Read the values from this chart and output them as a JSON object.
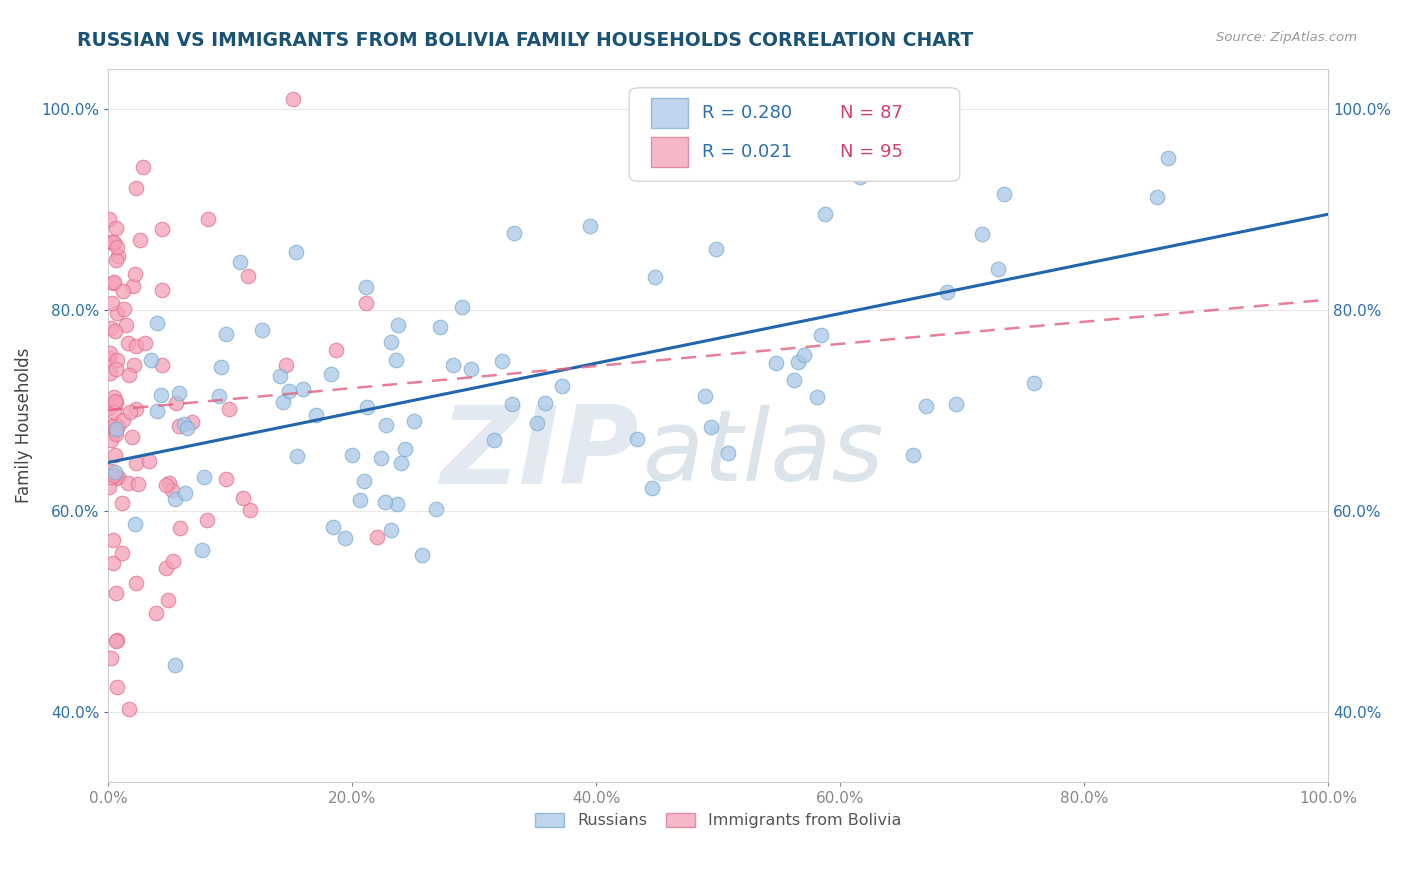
{
  "title": "RUSSIAN VS IMMIGRANTS FROM BOLIVIA FAMILY HOUSEHOLDS CORRELATION CHART",
  "source": "Source: ZipAtlas.com",
  "ylabel": "Family Households",
  "xmin": 0.0,
  "xmax": 1.0,
  "ymin": 0.33,
  "ymax": 1.04,
  "russian_R": 0.28,
  "russian_N": 87,
  "bolivia_R": 0.021,
  "bolivia_N": 95,
  "russian_color": "#a8c8e8",
  "russian_edge_color": "#7aabcc",
  "bolivia_color": "#f4a0b8",
  "bolivia_edge_color": "#e07090",
  "russian_line_color": "#2166ac",
  "bolivia_line_color": "#e06080",
  "watermark_zip": "ZIP",
  "watermark_atlas": "atlas",
  "watermark_color_zip": "#d0dce8",
  "watermark_color_atlas": "#c0ccd8",
  "background_color": "#ffffff",
  "grid_color": "#e8e8e8",
  "title_color": "#1a5276",
  "axis_tick_color": "#2c6fad",
  "legend_R_color": "#2c6fad",
  "legend_N_color": "#d04070",
  "xtick_labels": [
    "0.0%",
    "",
    "",
    "",
    "",
    "",
    "",
    "",
    "",
    "",
    "20.0%",
    "",
    "",
    "",
    "",
    "",
    "",
    "",
    "",
    "",
    "40.0%",
    "",
    "",
    "",
    "",
    "",
    "",
    "",
    "",
    "",
    "60.0%",
    "",
    "",
    "",
    "",
    "",
    "",
    "",
    "",
    "",
    "80.0%",
    "",
    "",
    "",
    "",
    "",
    "",
    "",
    "",
    "",
    "100.0%"
  ],
  "xtick_vals_major": [
    0.0,
    0.2,
    0.4,
    0.6,
    0.8,
    1.0
  ],
  "xtick_labels_major": [
    "0.0%",
    "20.0%",
    "40.0%",
    "60.0%",
    "80.0%",
    "100.0%"
  ],
  "ytick_vals": [
    0.4,
    0.6,
    0.8,
    1.0
  ],
  "ytick_labels": [
    "40.0%",
    "60.0%",
    "80.0%",
    "100.0%"
  ],
  "russian_trend_x0": 0.0,
  "russian_trend_y0": 0.648,
  "russian_trend_x1": 1.0,
  "russian_trend_y1": 0.895,
  "bolivia_trend_x0": 0.0,
  "bolivia_trend_y0": 0.7,
  "bolivia_trend_x1": 1.0,
  "bolivia_trend_y1": 0.81
}
